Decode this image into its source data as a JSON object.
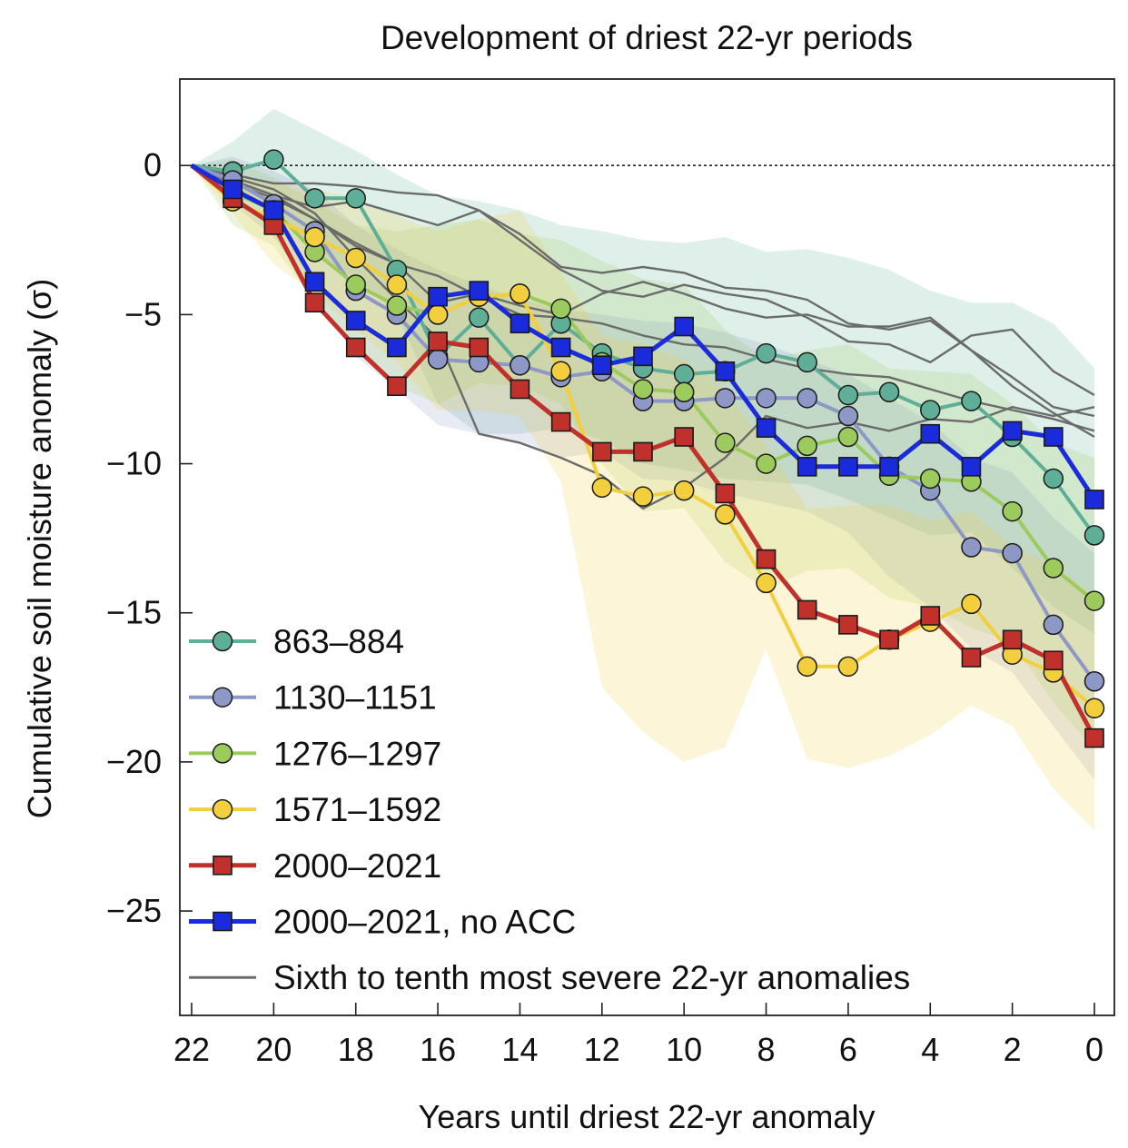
{
  "chart_data": {
    "type": "line",
    "title": "Development of driest 22-yr periods",
    "xlabel": "Years until driest 22-yr anomaly",
    "ylabel": "Cumulative soil moisture anomaly (σ)",
    "xlim": [
      22,
      0
    ],
    "ylim": [
      -28.5,
      2.9
    ],
    "x_ticks": [
      22,
      20,
      18,
      16,
      14,
      12,
      10,
      8,
      6,
      4,
      2,
      0
    ],
    "x_tick_labels": [
      "22",
      "20",
      "18",
      "16",
      "14",
      "12",
      "10",
      "8",
      "6",
      "4",
      "2",
      "0"
    ],
    "y_ticks": [
      0,
      -5,
      -10,
      -15,
      -20,
      -25
    ],
    "y_tick_labels": [
      "0",
      "−5",
      "−10",
      "−15",
      "−20",
      "−25"
    ],
    "zero_line": true,
    "grid": false,
    "legend_position": "lower-left",
    "x": [
      22,
      21,
      20,
      19,
      18,
      17,
      16,
      15,
      14,
      13,
      12,
      11,
      10,
      9,
      8,
      7,
      6,
      5,
      4,
      3,
      2,
      1,
      0
    ],
    "series": [
      {
        "name": "863–884",
        "color": "#5fae98",
        "marker": "circle",
        "values": [
          0,
          -0.2,
          0.2,
          -1.1,
          -1.1,
          -3.5,
          -6.4,
          -5.1,
          -6.7,
          -5.3,
          -6.3,
          -6.8,
          -7.0,
          -6.9,
          -6.3,
          -6.6,
          -7.7,
          -7.6,
          -8.2,
          -7.9,
          -9.1,
          -10.5,
          -12.4
        ],
        "band": {
          "upper": [
            0,
            0.8,
            1.9,
            1.2,
            0.5,
            -0.3,
            -1.0,
            -1.2,
            -1.5,
            -2.0,
            -2.2,
            -2.5,
            -2.6,
            -2.4,
            -2.9,
            -2.8,
            -3.1,
            -3.5,
            -4.2,
            -4.6,
            -4.6,
            -5.3,
            -6.8
          ],
          "lower": [
            0,
            -0.8,
            -1.5,
            -3.0,
            -3.8,
            -5.0,
            -8.0,
            -9.0,
            -9.0,
            -8.8,
            -9.2,
            -10.0,
            -10.2,
            -10.5,
            -10.6,
            -10.7,
            -11.2,
            -11.8,
            -12.4,
            -12.3,
            -13.5,
            -14.8,
            -15.7
          ]
        }
      },
      {
        "name": "1130–1151",
        "color": "#8d98c6",
        "marker": "circle",
        "values": [
          0,
          -0.5,
          -1.3,
          -2.2,
          -4.2,
          -5.0,
          -6.5,
          -6.6,
          -6.7,
          -7.1,
          -6.9,
          -7.9,
          -7.9,
          -7.8,
          -7.8,
          -7.8,
          -8.4,
          -10.1,
          -10.9,
          -12.8,
          -13.0,
          -15.4,
          -17.3
        ],
        "band": {
          "upper": [
            0,
            0.3,
            -0.2,
            -0.8,
            -2.0,
            -2.8,
            -3.5,
            -4.0,
            -4.5,
            -4.8,
            -5.0,
            -5.2,
            -5.3,
            -5.6,
            -6.0,
            -6.5,
            -7.0,
            -7.8,
            -8.6,
            -9.8,
            -10.3,
            -11.8,
            -13.0
          ],
          "lower": [
            0,
            -1.3,
            -2.4,
            -4.3,
            -6.4,
            -7.5,
            -8.7,
            -9.0,
            -9.3,
            -9.8,
            -9.6,
            -10.5,
            -10.6,
            -11.0,
            -11.3,
            -11.6,
            -12.3,
            -13.8,
            -14.8,
            -16.2,
            -17.0,
            -18.8,
            -20.6
          ]
        }
      },
      {
        "name": "1276–1297",
        "color": "#9bcb5c",
        "marker": "circle",
        "values": [
          0,
          -0.9,
          -1.5,
          -2.9,
          -4.0,
          -4.7,
          -5.0,
          -4.4,
          -4.3,
          -4.8,
          -6.6,
          -7.5,
          -7.6,
          -9.3,
          -10.0,
          -9.4,
          -9.1,
          -10.4,
          -10.5,
          -10.6,
          -11.6,
          -13.5,
          -14.6
        ],
        "band": {
          "upper": [
            0,
            0.2,
            -0.4,
            -1.2,
            -2.0,
            -2.2,
            -2.0,
            -1.8,
            -2.3,
            -2.5,
            -3.2,
            -3.8,
            -4.0,
            -5.5,
            -6.5,
            -6.2,
            -6.0,
            -6.8,
            -6.9,
            -7.0,
            -8.0,
            -9.3,
            -9.8
          ],
          "lower": [
            0,
            -2.0,
            -2.7,
            -4.6,
            -6.0,
            -7.4,
            -8.0,
            -7.3,
            -7.4,
            -8.0,
            -10.0,
            -11.6,
            -11.5,
            -13.3,
            -14.2,
            -13.6,
            -13.5,
            -14.5,
            -14.8,
            -15.5,
            -16.0,
            -18.0,
            -19.6
          ]
        }
      },
      {
        "name": "1571–1592",
        "color": "#f3cf3e",
        "marker": "circle",
        "values": [
          0,
          -1.2,
          -1.8,
          -2.4,
          -3.1,
          -4.0,
          -5.0,
          -4.4,
          -4.3,
          -6.9,
          -10.8,
          -11.1,
          -10.9,
          -11.7,
          -14.0,
          -16.8,
          -16.8,
          -15.9,
          -15.3,
          -14.7,
          -16.4,
          -17.0,
          -18.2
        ],
        "band": {
          "upper": [
            0,
            -0.3,
            -0.6,
            -0.8,
            -1.1,
            -1.7,
            -2.2,
            -1.8,
            -1.5,
            -3.6,
            -5.7,
            -6.0,
            -6.5,
            -7.5,
            -9.4,
            -11.5,
            -11.4,
            -11.4,
            -11.9,
            -11.6,
            -12.8,
            -13.4,
            -14.4
          ],
          "lower": [
            0,
            -1.6,
            -3.3,
            -4.3,
            -5.5,
            -6.6,
            -8.2,
            -8.2,
            -8.4,
            -10.6,
            -17.5,
            -19.0,
            -20.0,
            -19.5,
            -16.2,
            -19.9,
            -20.2,
            -19.8,
            -19.1,
            -18.1,
            -18.8,
            -20.9,
            -22.3
          ]
        }
      },
      {
        "name": "2000–2021",
        "color": "#c0312b",
        "marker": "square",
        "values": [
          0,
          -1.1,
          -2.0,
          -4.6,
          -6.1,
          -7.4,
          -5.9,
          -6.1,
          -7.5,
          -8.6,
          -9.6,
          -9.6,
          -9.1,
          -11.0,
          -13.2,
          -14.9,
          -15.4,
          -15.9,
          -15.1,
          -16.5,
          -15.9,
          -16.6,
          -19.2
        ]
      },
      {
        "name": "2000–2021, no ACC",
        "color": "#1a2bdb",
        "marker": "square",
        "values": [
          0,
          -0.8,
          -1.5,
          -3.9,
          -5.2,
          -6.1,
          -4.4,
          -4.2,
          -5.3,
          -6.1,
          -6.7,
          -6.4,
          -5.4,
          -6.9,
          -8.8,
          -10.1,
          -10.1,
          -10.1,
          -9.0,
          -10.1,
          -8.9,
          -9.1,
          -11.2
        ]
      },
      {
        "name": "Sixth to tenth most severe 22-yr anomalies",
        "color": "#6b6b6b",
        "marker": "none",
        "lines": [
          [
            0,
            -0.5,
            -1.0,
            -1.8,
            -2.6,
            -3.3,
            -3.7,
            -4.4,
            -5.0,
            -5.1,
            -5.3,
            -5.7,
            -6.0,
            -6.1,
            -6.5,
            -6.8,
            -7.0,
            -7.1,
            -7.5,
            -7.9,
            -8.2,
            -8.5,
            -8.9
          ],
          [
            0,
            -0.5,
            -1.0,
            -1.4,
            -1.2,
            -1.6,
            -2.0,
            -1.5,
            -2.3,
            -3.4,
            -3.6,
            -3.4,
            -3.6,
            -4.1,
            -4.2,
            -4.5,
            -5.3,
            -5.5,
            -5.2,
            -6.2,
            -7.4,
            -8.3,
            -9.1
          ],
          [
            0,
            -0.3,
            -0.6,
            -0.6,
            -0.7,
            -0.9,
            -1.0,
            -1.5,
            -2.5,
            -3.5,
            -4.2,
            -4.4,
            -4.0,
            -4.3,
            -4.5,
            -5.1,
            -5.9,
            -6.0,
            -6.6,
            -5.7,
            -5.5,
            -6.9,
            -7.7
          ],
          [
            0,
            -0.6,
            -1.1,
            -1.8,
            -2.7,
            -3.3,
            -4.6,
            -4.3,
            -4.7,
            -5.0,
            -4.3,
            -3.9,
            -4.3,
            -4.8,
            -5.1,
            -5.0,
            -5.4,
            -5.4,
            -5.1,
            -6.2,
            -7.1,
            -8.1,
            -8.4
          ],
          [
            0,
            -0.4,
            -0.8,
            -1.6,
            -3.1,
            -4.5,
            -5.8,
            -9.0,
            -9.3,
            -9.8,
            -10.4,
            -11.5,
            -10.8,
            -9.8,
            -8.4,
            -8.8,
            -8.6,
            -8.9,
            -8.5,
            -8.6,
            -8.1,
            -8.4,
            -8.1
          ]
        ]
      }
    ]
  }
}
